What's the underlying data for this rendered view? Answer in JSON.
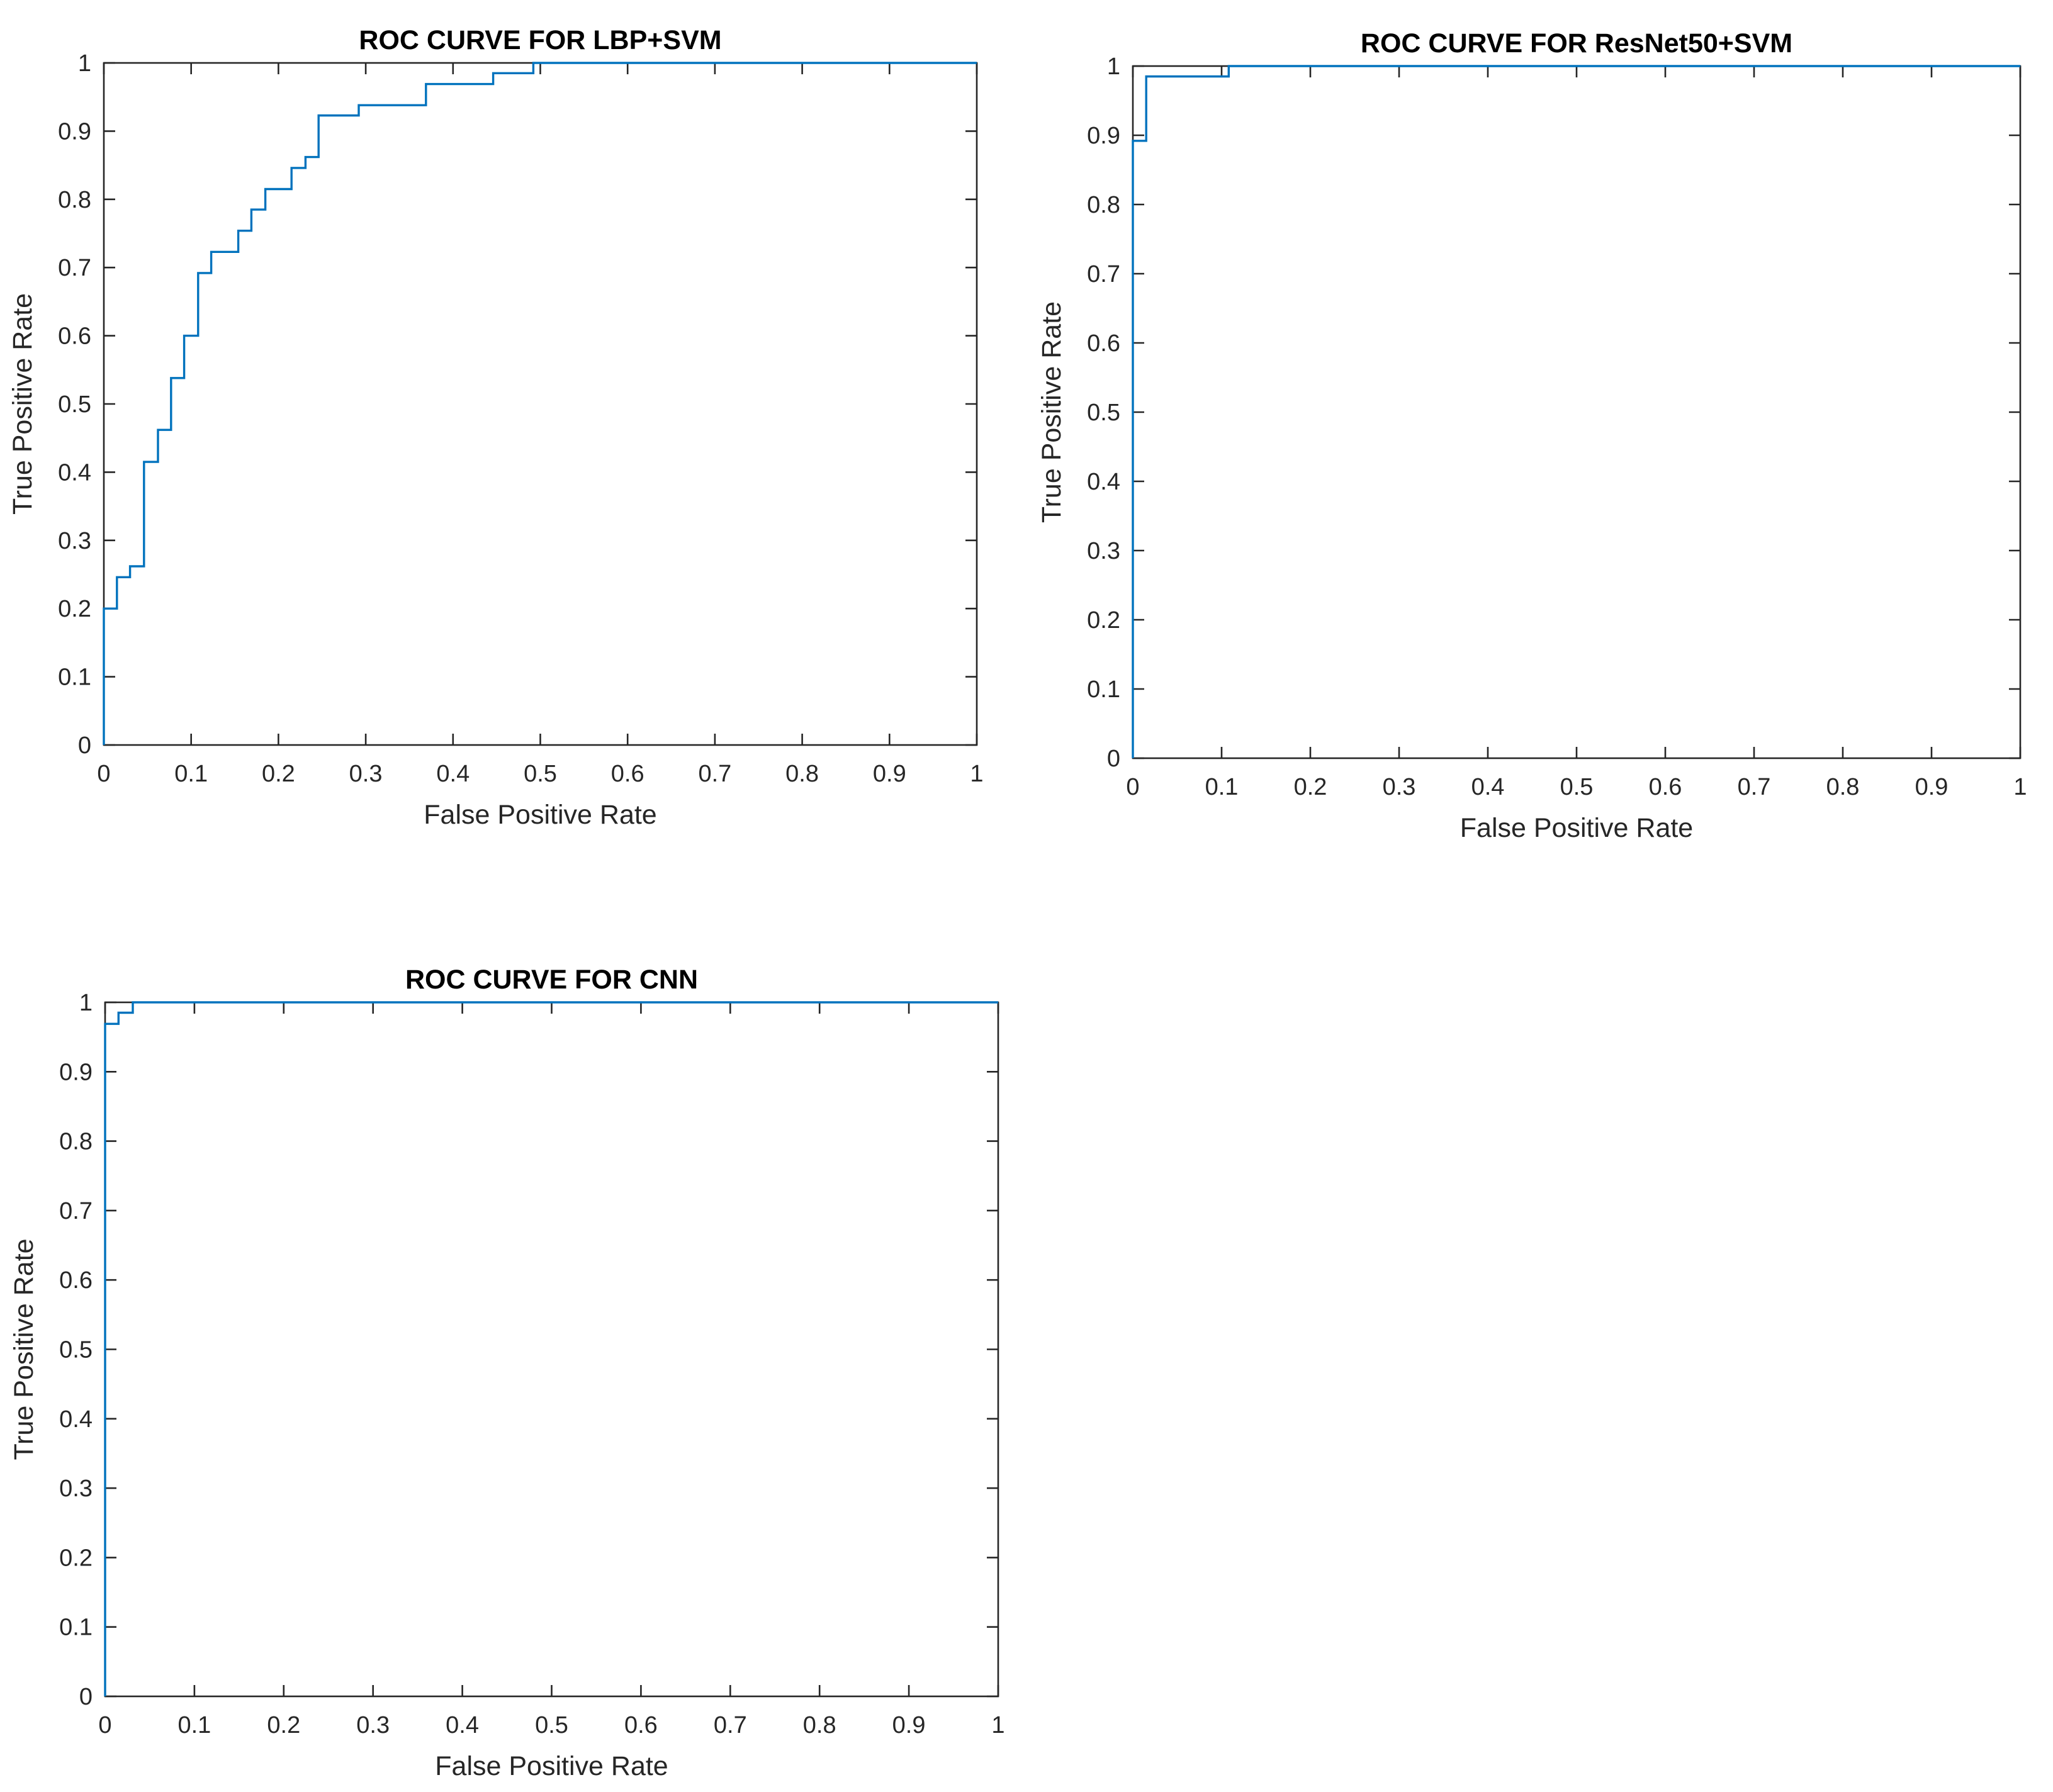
{
  "chart_data": [
    {
      "type": "line",
      "title": "ROC CURVE FOR LBP+SVM",
      "xlabel": "False Positive Rate",
      "ylabel": "True Positive Rate",
      "xlim": [
        0,
        1
      ],
      "ylim": [
        0,
        1
      ],
      "xticks": [
        "0",
        "0.1",
        "0.2",
        "0.3",
        "0.4",
        "0.5",
        "0.6",
        "0.7",
        "0.8",
        "0.9",
        "1"
      ],
      "yticks": [
        "0",
        "0.1",
        "0.2",
        "0.3",
        "0.4",
        "0.5",
        "0.6",
        "0.7",
        "0.8",
        "0.9",
        "1"
      ],
      "grid": false,
      "series": [
        {
          "color": "#0072bd",
          "x": [
            0,
            0,
            0.015,
            0.015,
            0.03,
            0.03,
            0.046,
            0.046,
            0.062,
            0.062,
            0.077,
            0.077,
            0.092,
            0.092,
            0.108,
            0.108,
            0.123,
            0.123,
            0.154,
            0.154,
            0.169,
            0.169,
            0.185,
            0.185,
            0.215,
            0.215,
            0.231,
            0.231,
            0.246,
            0.246,
            0.292,
            0.292,
            0.369,
            0.369,
            0.446,
            0.446,
            0.492,
            0.492,
            1
          ],
          "y": [
            0,
            0.2,
            0.2,
            0.246,
            0.246,
            0.262,
            0.262,
            0.415,
            0.415,
            0.462,
            0.462,
            0.538,
            0.538,
            0.6,
            0.6,
            0.692,
            0.692,
            0.723,
            0.723,
            0.754,
            0.754,
            0.785,
            0.785,
            0.815,
            0.815,
            0.846,
            0.846,
            0.862,
            0.862,
            0.923,
            0.923,
            0.938,
            0.938,
            0.969,
            0.969,
            0.985,
            0.985,
            1,
            1
          ]
        }
      ]
    },
    {
      "type": "line",
      "title": "ROC CURVE FOR ResNet50+SVM",
      "xlabel": "False Positive Rate",
      "ylabel": "True Positive Rate",
      "xlim": [
        0,
        1
      ],
      "ylim": [
        0,
        1
      ],
      "xticks": [
        "0",
        "0.1",
        "0.2",
        "0.3",
        "0.4",
        "0.5",
        "0.6",
        "0.7",
        "0.8",
        "0.9",
        "1"
      ],
      "yticks": [
        "0",
        "0.1",
        "0.2",
        "0.3",
        "0.4",
        "0.5",
        "0.6",
        "0.7",
        "0.8",
        "0.9",
        "1"
      ],
      "grid": false,
      "series": [
        {
          "color": "#0072bd",
          "x": [
            0,
            0,
            0.015,
            0.015,
            0.108,
            0.108,
            1
          ],
          "y": [
            0,
            0.892,
            0.892,
            0.985,
            0.985,
            1,
            1
          ]
        }
      ]
    },
    {
      "type": "line",
      "title": "ROC CURVE FOR CNN",
      "xlabel": "False Positive Rate",
      "ylabel": "True Positive Rate",
      "xlim": [
        0,
        1
      ],
      "ylim": [
        0,
        1
      ],
      "xticks": [
        "0",
        "0.1",
        "0.2",
        "0.3",
        "0.4",
        "0.5",
        "0.6",
        "0.7",
        "0.8",
        "0.9",
        "1"
      ],
      "yticks": [
        "0",
        "0.1",
        "0.2",
        "0.3",
        "0.4",
        "0.5",
        "0.6",
        "0.7",
        "0.8",
        "0.9",
        "1"
      ],
      "grid": false,
      "series": [
        {
          "color": "#0072bd",
          "x": [
            0,
            0,
            0.015,
            0.015,
            0.031,
            0.031,
            1
          ],
          "y": [
            0,
            0.969,
            0.969,
            0.985,
            0.985,
            1,
            1
          ]
        }
      ]
    }
  ]
}
